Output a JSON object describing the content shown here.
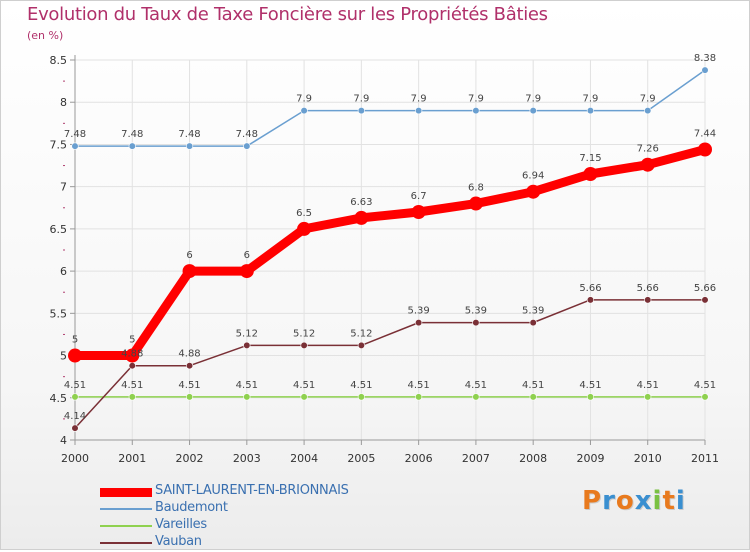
{
  "header": {
    "title": "Evolution du Taux de Taxe Foncière sur les Propriétés Bâties",
    "unit": "(en %)"
  },
  "logo": {
    "letters": [
      "P",
      "r",
      "o",
      "x",
      "i",
      "t",
      "i"
    ],
    "colors": [
      "#e87a1e",
      "#3a8fd0",
      "#e87a1e",
      "#3a8fd0",
      "#7ac143",
      "#e87a1e",
      "#3a8fd0"
    ]
  },
  "chart_data": {
    "type": "line",
    "title": "Evolution du Taux de Taxe Foncière sur les Propriétés Bâties",
    "ylabel": "(en %)",
    "xlabel": "",
    "x": [
      "2000",
      "2001",
      "2002",
      "2003",
      "2004",
      "2005",
      "2006",
      "2007",
      "2008",
      "2009",
      "2010",
      "2011"
    ],
    "ylim": [
      4,
      8.5
    ],
    "yticks": [
      "4",
      "4.5",
      "5",
      "5.5",
      "6",
      "6.5",
      "7",
      "7.5",
      "8",
      "8.5"
    ],
    "ytick_values": [
      4,
      4.5,
      5,
      5.5,
      6,
      6.5,
      7,
      7.5,
      8,
      8.5
    ],
    "grid": true,
    "legend_position": "bottom-left",
    "series": [
      {
        "name": "SAINT-LAURENT-EN-BRIONNAIS",
        "color": "#ff0000",
        "emphasis": true,
        "values": [
          5,
          5,
          6,
          6,
          6.5,
          6.63,
          6.7,
          6.8,
          6.94,
          7.15,
          7.26,
          7.44
        ],
        "labels": [
          "5",
          "5",
          "6",
          "6",
          "6.5",
          "6.63",
          "6.7",
          "6.8",
          "6.94",
          "7.15",
          "7.26",
          "7.44"
        ]
      },
      {
        "name": "Baudemont",
        "color": "#6a9fd0",
        "emphasis": false,
        "values": [
          7.48,
          7.48,
          7.48,
          7.48,
          7.9,
          7.9,
          7.9,
          7.9,
          7.9,
          7.9,
          7.9,
          8.38
        ],
        "labels": [
          "7.48",
          "7.48",
          "7.48",
          "7.48",
          "7.9",
          "7.9",
          "7.9",
          "7.9",
          "7.9",
          "7.9",
          "7.9",
          "8.38"
        ]
      },
      {
        "name": "Vareilles",
        "color": "#8fd14f",
        "emphasis": false,
        "values": [
          4.51,
          4.51,
          4.51,
          4.51,
          4.51,
          4.51,
          4.51,
          4.51,
          4.51,
          4.51,
          4.51,
          4.51
        ],
        "labels": [
          "4.51",
          "4.51",
          "4.51",
          "4.51",
          "4.51",
          "4.51",
          "4.51",
          "4.51",
          "4.51",
          "4.51",
          "4.51",
          "4.51"
        ]
      },
      {
        "name": "Vauban",
        "color": "#7a3036",
        "emphasis": false,
        "values": [
          4.14,
          4.88,
          4.88,
          5.12,
          5.12,
          5.12,
          5.39,
          5.39,
          5.39,
          5.66,
          5.66,
          5.66
        ],
        "labels": [
          "4.14",
          "4.88",
          "4.88",
          "5.12",
          "5.12",
          "5.12",
          "5.39",
          "5.39",
          "5.39",
          "5.66",
          "5.66",
          "5.66"
        ]
      }
    ]
  }
}
